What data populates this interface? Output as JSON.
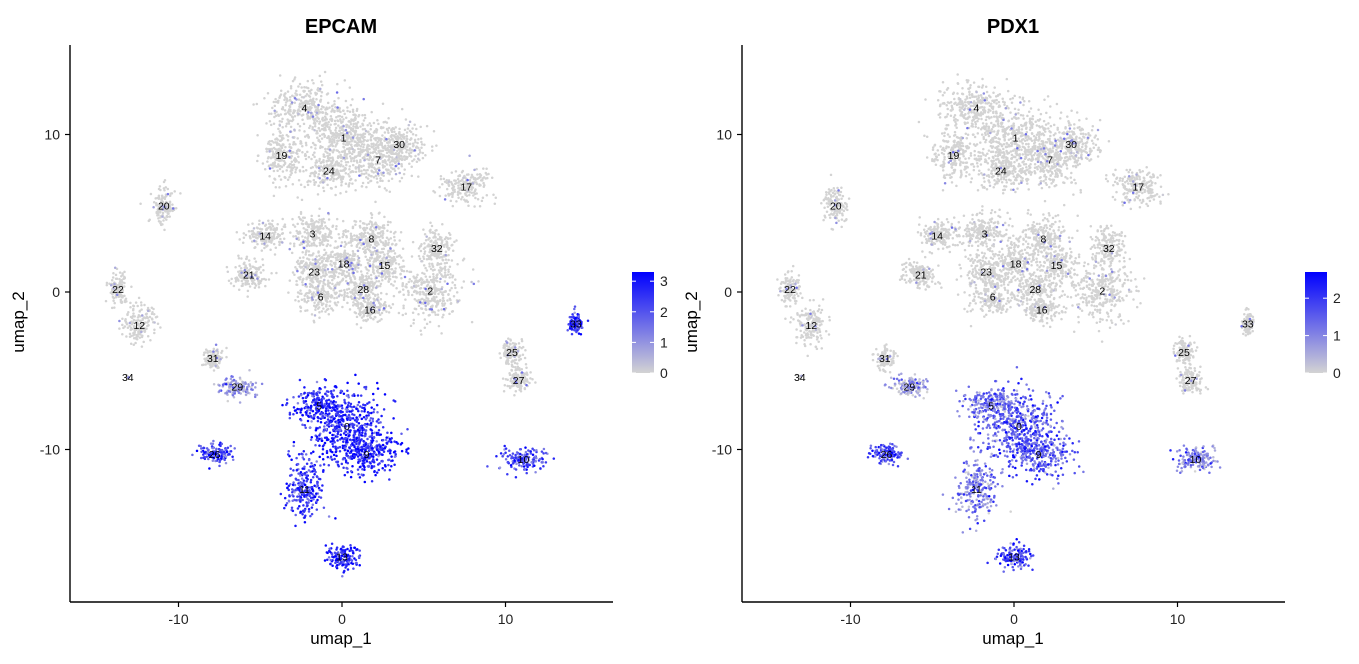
{
  "figure": {
    "colors": {
      "low": "#D3D3D3",
      "high": "#0000FF",
      "axis": "#000000"
    }
  },
  "chart_data": [
    {
      "type": "scatter",
      "title": "EPCAM",
      "xlabel": "umap_1",
      "ylabel": "umap_2",
      "xlim": [
        -16.5,
        16.5
      ],
      "ylim": [
        -19.5,
        15.5
      ],
      "x_ticks": [
        -10,
        0,
        10
      ],
      "y_ticks": [
        -10,
        0,
        10
      ],
      "x_tick_labels": [
        "-10",
        "0",
        "10"
      ],
      "y_tick_labels": [
        "-10",
        "0",
        "10"
      ],
      "grid": false,
      "legend": {
        "position": "right",
        "color_range": [
          0,
          3.3
        ],
        "ticks": [
          0,
          1,
          2,
          3
        ],
        "tick_labels": [
          "0",
          "1",
          "2",
          "3"
        ]
      },
      "clusters": [
        {
          "label": "0",
          "x": 0.3,
          "y": -8.5,
          "expr": 2.7
        },
        {
          "label": "1",
          "x": 0.1,
          "y": 9.8,
          "expr": 0.05
        },
        {
          "label": "2",
          "x": 5.4,
          "y": 0.1,
          "expr": 0.05
        },
        {
          "label": "3",
          "x": -1.8,
          "y": 3.7,
          "expr": 0.1
        },
        {
          "label": "4",
          "x": -2.3,
          "y": 11.7,
          "expr": 0.15
        },
        {
          "label": "5",
          "x": -1.4,
          "y": -7.2,
          "expr": 2.6
        },
        {
          "label": "6",
          "x": -1.3,
          "y": -0.3,
          "expr": 0.05
        },
        {
          "label": "7",
          "x": 2.2,
          "y": 8.4,
          "expr": 0.05
        },
        {
          "label": "8",
          "x": 1.8,
          "y": 3.4,
          "expr": 0.1
        },
        {
          "label": "9",
          "x": 1.5,
          "y": -10.3,
          "expr": 2.8
        },
        {
          "label": "10",
          "x": 11.1,
          "y": -10.6,
          "expr": 2.2
        },
        {
          "label": "11",
          "x": -2.3,
          "y": -12.5,
          "expr": 2.4
        },
        {
          "label": "12",
          "x": -12.4,
          "y": -2.1,
          "expr": 0.05
        },
        {
          "label": "13",
          "x": 0.0,
          "y": -16.8,
          "expr": 2.8
        },
        {
          "label": "14",
          "x": -4.7,
          "y": 3.6,
          "expr": 0.05
        },
        {
          "label": "15",
          "x": 2.6,
          "y": 1.7,
          "expr": 0.1
        },
        {
          "label": "16",
          "x": 1.7,
          "y": -1.1,
          "expr": 0.1
        },
        {
          "label": "17",
          "x": 7.6,
          "y": 6.7,
          "expr": 0.05
        },
        {
          "label": "18",
          "x": 0.1,
          "y": 1.8,
          "expr": 0.1
        },
        {
          "label": "19",
          "x": -3.7,
          "y": 8.7,
          "expr": 0.05
        },
        {
          "label": "20",
          "x": -10.9,
          "y": 5.5,
          "expr": 0.05
        },
        {
          "label": "21",
          "x": -5.7,
          "y": 1.1,
          "expr": 0.05
        },
        {
          "label": "22",
          "x": -13.7,
          "y": 0.2,
          "expr": 0.05
        },
        {
          "label": "23",
          "x": -1.7,
          "y": 1.3,
          "expr": 0.05
        },
        {
          "label": "24",
          "x": -0.8,
          "y": 7.7,
          "expr": 0.05
        },
        {
          "label": "25",
          "x": 10.4,
          "y": -3.8,
          "expr": 0.05
        },
        {
          "label": "26",
          "x": -7.8,
          "y": -10.3,
          "expr": 2.3
        },
        {
          "label": "27",
          "x": 10.8,
          "y": -5.6,
          "expr": 0.05
        },
        {
          "label": "28",
          "x": 1.3,
          "y": 0.2,
          "expr": 0.1
        },
        {
          "label": "29",
          "x": -6.4,
          "y": -6.0,
          "expr": 0.8
        },
        {
          "label": "30",
          "x": 3.5,
          "y": 9.4,
          "expr": 0.05
        },
        {
          "label": "31",
          "x": -7.9,
          "y": -4.2,
          "expr": 0.1
        },
        {
          "label": "32",
          "x": 5.8,
          "y": 2.8,
          "expr": 0.05
        },
        {
          "label": "33",
          "x": 14.3,
          "y": -2.0,
          "expr": 2.5
        },
        {
          "label": "34",
          "x": -13.1,
          "y": -5.4,
          "expr": 0.0
        }
      ]
    },
    {
      "type": "scatter",
      "title": "PDX1",
      "xlabel": "umap_1",
      "ylabel": "umap_2",
      "xlim": [
        -16.5,
        16.5
      ],
      "ylim": [
        -19.5,
        15.5
      ],
      "x_ticks": [
        -10,
        0,
        10
      ],
      "y_ticks": [
        -10,
        0,
        10
      ],
      "x_tick_labels": [
        "-10",
        "0",
        "10"
      ],
      "y_tick_labels": [
        "-10",
        "0",
        "10"
      ],
      "grid": false,
      "legend": {
        "position": "right",
        "color_range": [
          0,
          2.7
        ],
        "ticks": [
          0,
          1,
          2
        ],
        "tick_labels": [
          "0",
          "1",
          "2"
        ]
      },
      "clusters": [
        {
          "label": "0",
          "x": 0.3,
          "y": -8.5,
          "expr": 1.5
        },
        {
          "label": "1",
          "x": 0.1,
          "y": 9.8,
          "expr": 0.0
        },
        {
          "label": "2",
          "x": 5.4,
          "y": 0.1,
          "expr": 0.0
        },
        {
          "label": "3",
          "x": -1.8,
          "y": 3.7,
          "expr": 0.0
        },
        {
          "label": "4",
          "x": -2.3,
          "y": 11.7,
          "expr": 0.0
        },
        {
          "label": "5",
          "x": -1.4,
          "y": -7.2,
          "expr": 1.3
        },
        {
          "label": "6",
          "x": -1.3,
          "y": -0.3,
          "expr": 0.0
        },
        {
          "label": "7",
          "x": 2.2,
          "y": 8.4,
          "expr": 0.0
        },
        {
          "label": "8",
          "x": 1.8,
          "y": 3.4,
          "expr": 0.0
        },
        {
          "label": "9",
          "x": 1.5,
          "y": -10.3,
          "expr": 1.6
        },
        {
          "label": "10",
          "x": 11.1,
          "y": -10.6,
          "expr": 1.0
        },
        {
          "label": "11",
          "x": -2.3,
          "y": -12.5,
          "expr": 1.1
        },
        {
          "label": "12",
          "x": -12.4,
          "y": -2.1,
          "expr": 0.0
        },
        {
          "label": "13",
          "x": 0.0,
          "y": -16.8,
          "expr": 1.9
        },
        {
          "label": "14",
          "x": -4.7,
          "y": 3.6,
          "expr": 0.0
        },
        {
          "label": "15",
          "x": 2.6,
          "y": 1.7,
          "expr": 0.0
        },
        {
          "label": "16",
          "x": 1.7,
          "y": -1.1,
          "expr": 0.0
        },
        {
          "label": "17",
          "x": 7.6,
          "y": 6.7,
          "expr": 0.0
        },
        {
          "label": "18",
          "x": 0.1,
          "y": 1.8,
          "expr": 0.0
        },
        {
          "label": "19",
          "x": -3.7,
          "y": 8.7,
          "expr": 0.0
        },
        {
          "label": "20",
          "x": -10.9,
          "y": 5.5,
          "expr": 0.0
        },
        {
          "label": "21",
          "x": -5.7,
          "y": 1.1,
          "expr": 0.0
        },
        {
          "label": "22",
          "x": -13.7,
          "y": 0.2,
          "expr": 0.0
        },
        {
          "label": "23",
          "x": -1.7,
          "y": 1.3,
          "expr": 0.0
        },
        {
          "label": "24",
          "x": -0.8,
          "y": 7.7,
          "expr": 0.0
        },
        {
          "label": "25",
          "x": 10.4,
          "y": -3.8,
          "expr": 0.0
        },
        {
          "label": "26",
          "x": -7.8,
          "y": -10.3,
          "expr": 1.8
        },
        {
          "label": "27",
          "x": 10.8,
          "y": -5.6,
          "expr": 0.0
        },
        {
          "label": "28",
          "x": 1.3,
          "y": 0.2,
          "expr": 0.0
        },
        {
          "label": "29",
          "x": -6.4,
          "y": -6.0,
          "expr": 0.6
        },
        {
          "label": "30",
          "x": 3.5,
          "y": 9.4,
          "expr": 0.0
        },
        {
          "label": "31",
          "x": -7.9,
          "y": -4.2,
          "expr": 0.0
        },
        {
          "label": "32",
          "x": 5.8,
          "y": 2.8,
          "expr": 0.0
        },
        {
          "label": "33",
          "x": 14.3,
          "y": -2.0,
          "expr": 0.0
        },
        {
          "label": "34",
          "x": -13.1,
          "y": -5.4,
          "expr": 0.0
        }
      ]
    }
  ]
}
